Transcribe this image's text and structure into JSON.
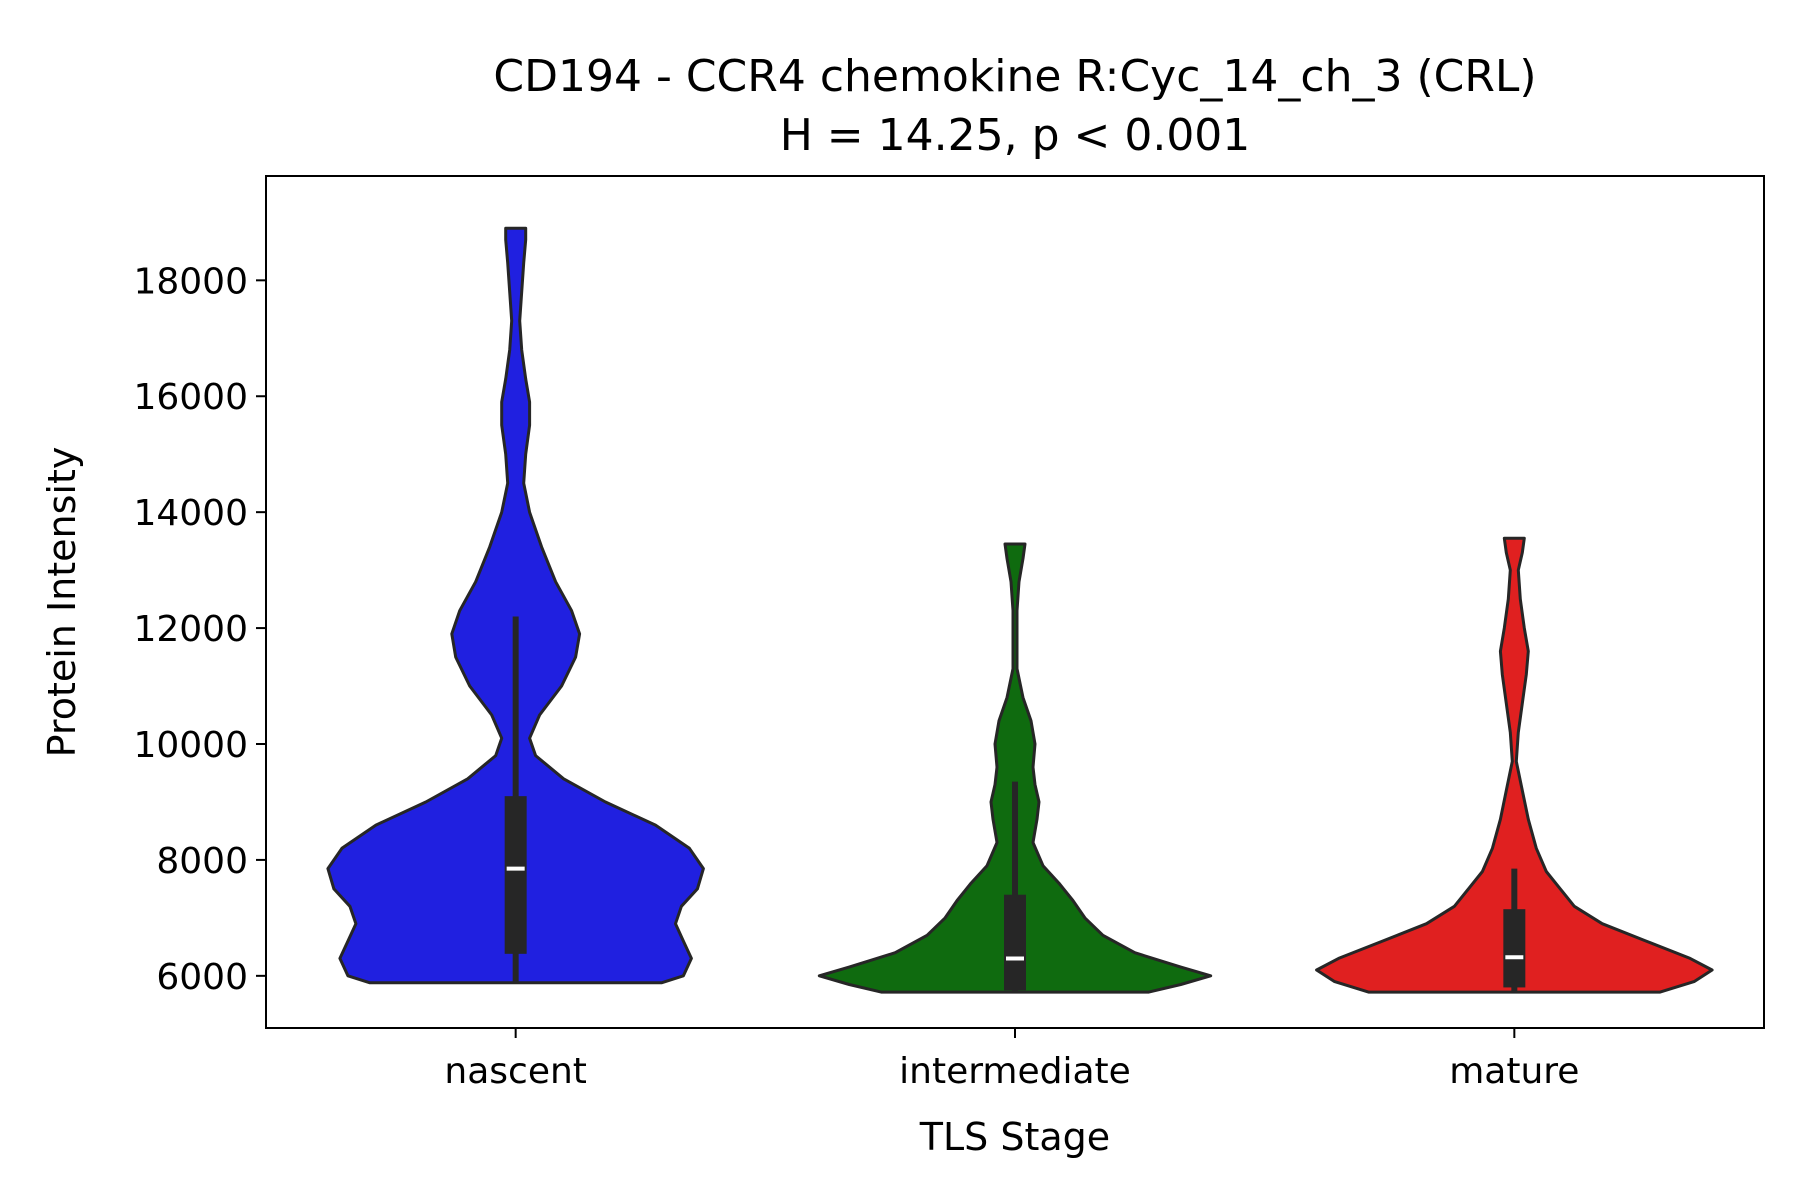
{
  "chart_data": {
    "type": "violin",
    "title": "CD194 - CCR4 chemokine R:Cyc_14_ch_3 (CRL)",
    "subtitle": "H = 14.25, p < 0.001",
    "xlabel": "TLS Stage",
    "ylabel": "Protein Intensity",
    "categories": [
      "nascent",
      "intermediate",
      "mature"
    ],
    "ylim": [
      5100,
      19800
    ],
    "yticks": [
      6000,
      8000,
      10000,
      12000,
      14000,
      16000,
      18000
    ],
    "grid": false,
    "legend": "none",
    "series": [
      {
        "category": "nascent",
        "color": "#2020e0",
        "min": 5880,
        "q1": 6380,
        "median": 7850,
        "q3": 9100,
        "whisker_high": 12200,
        "max": 18900,
        "density": [
          [
            5880,
            0.73
          ],
          [
            6000,
            0.84
          ],
          [
            6300,
            0.88
          ],
          [
            6600,
            0.84
          ],
          [
            6900,
            0.8
          ],
          [
            7200,
            0.83
          ],
          [
            7500,
            0.91
          ],
          [
            7850,
            0.94
          ],
          [
            8200,
            0.87
          ],
          [
            8600,
            0.7
          ],
          [
            9000,
            0.45
          ],
          [
            9400,
            0.24
          ],
          [
            9800,
            0.1
          ],
          [
            10100,
            0.07
          ],
          [
            10500,
            0.12
          ],
          [
            11000,
            0.23
          ],
          [
            11500,
            0.3
          ],
          [
            11900,
            0.32
          ],
          [
            12300,
            0.28
          ],
          [
            12800,
            0.2
          ],
          [
            13400,
            0.13
          ],
          [
            14000,
            0.07
          ],
          [
            14500,
            0.04
          ],
          [
            15000,
            0.05
          ],
          [
            15500,
            0.07
          ],
          [
            15900,
            0.07
          ],
          [
            16300,
            0.05
          ],
          [
            16800,
            0.03
          ],
          [
            17300,
            0.02
          ],
          [
            17800,
            0.03
          ],
          [
            18300,
            0.04
          ],
          [
            18700,
            0.05
          ],
          [
            18900,
            0.05
          ]
        ]
      },
      {
        "category": "intermediate",
        "color": "#0f6b0f",
        "min": 5720,
        "q1": 5750,
        "median": 6300,
        "q3": 7400,
        "whisker_high": 9350,
        "max": 13450,
        "density": [
          [
            5720,
            0.67
          ],
          [
            5850,
            0.83
          ],
          [
            6000,
            0.98
          ],
          [
            6150,
            0.83
          ],
          [
            6400,
            0.6
          ],
          [
            6700,
            0.44
          ],
          [
            7000,
            0.35
          ],
          [
            7300,
            0.29
          ],
          [
            7600,
            0.22
          ],
          [
            7900,
            0.14
          ],
          [
            8300,
            0.09
          ],
          [
            8700,
            0.11
          ],
          [
            9000,
            0.12
          ],
          [
            9300,
            0.1
          ],
          [
            9600,
            0.09
          ],
          [
            10000,
            0.1
          ],
          [
            10400,
            0.08
          ],
          [
            10800,
            0.04
          ],
          [
            11300,
            0.01
          ],
          [
            11800,
            0.01
          ],
          [
            12300,
            0.01
          ],
          [
            12800,
            0.02
          ],
          [
            13200,
            0.04
          ],
          [
            13450,
            0.05
          ]
        ]
      },
      {
        "category": "mature",
        "color": "#e02020",
        "min": 5720,
        "q1": 5800,
        "median": 6320,
        "q3": 7150,
        "whisker_high": 7850,
        "max": 13550,
        "density": [
          [
            5720,
            0.73
          ],
          [
            5900,
            0.9
          ],
          [
            6100,
            0.99
          ],
          [
            6300,
            0.88
          ],
          [
            6600,
            0.66
          ],
          [
            6900,
            0.44
          ],
          [
            7200,
            0.3
          ],
          [
            7500,
            0.23
          ],
          [
            7800,
            0.16
          ],
          [
            8200,
            0.11
          ],
          [
            8700,
            0.07
          ],
          [
            9200,
            0.04
          ],
          [
            9700,
            0.01
          ],
          [
            10200,
            0.02
          ],
          [
            10700,
            0.04
          ],
          [
            11200,
            0.06
          ],
          [
            11600,
            0.07
          ],
          [
            12000,
            0.05
          ],
          [
            12500,
            0.03
          ],
          [
            13000,
            0.02
          ],
          [
            13300,
            0.04
          ],
          [
            13550,
            0.05
          ]
        ]
      }
    ]
  }
}
